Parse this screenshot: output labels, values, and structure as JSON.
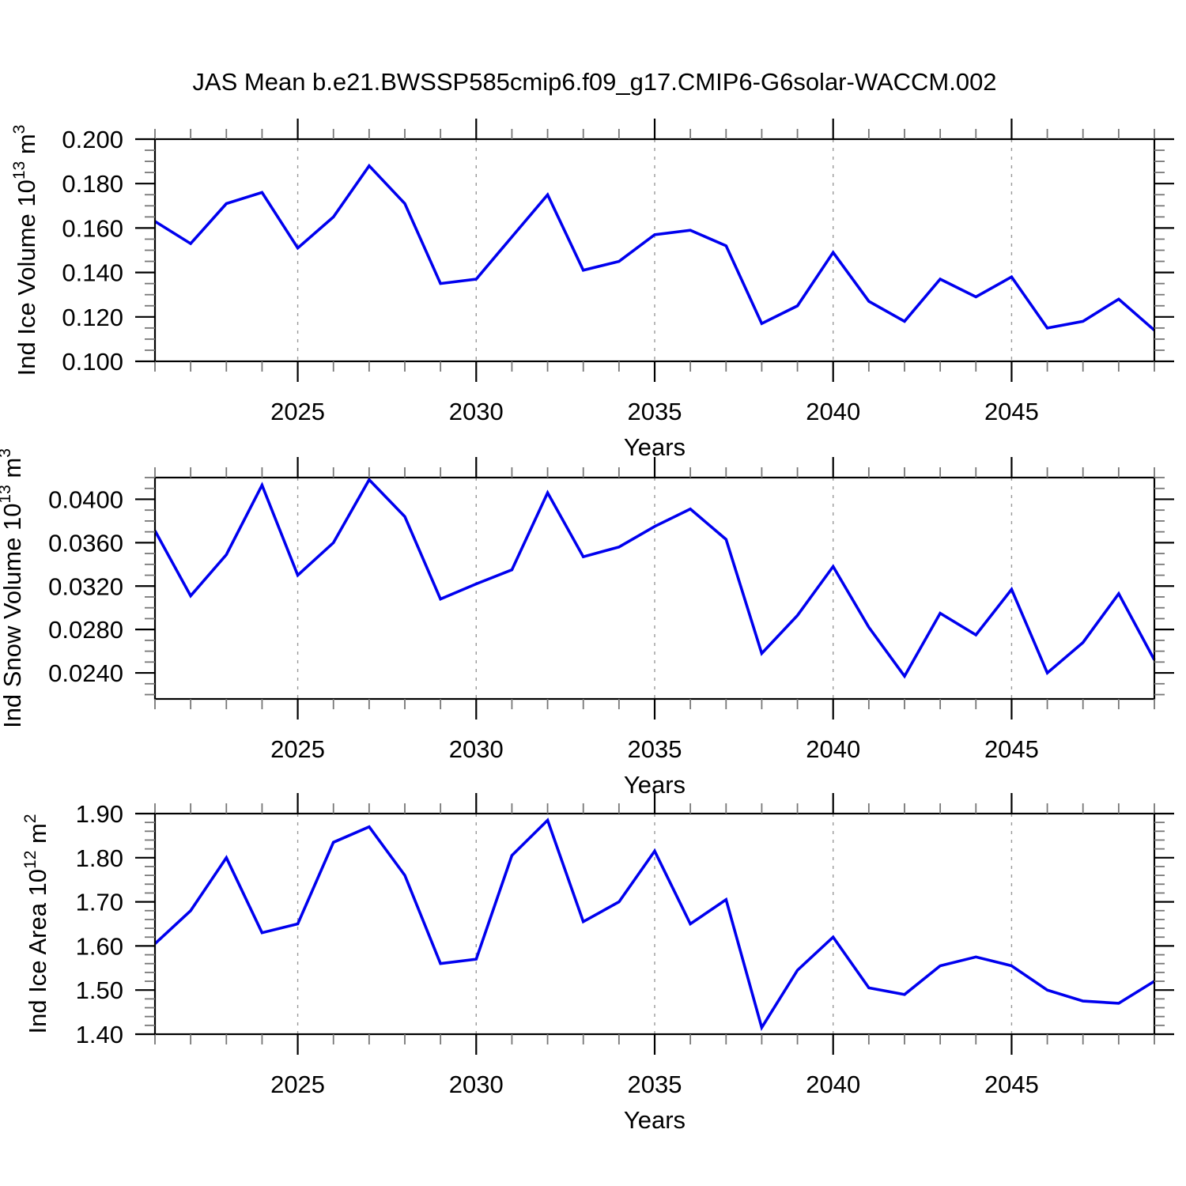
{
  "title": "JAS Mean b.e21.BWSSP585cmip6.f09_g17.CMIP6-G6solar-WACCM.002",
  "chart_data": [
    {
      "type": "line",
      "name": "ice-volume",
      "ylabel_segments": [
        {
          "t": "Ind Ice Volume 10"
        },
        {
          "t": "13",
          "sup": true
        },
        {
          "t": " m"
        },
        {
          "t": "3",
          "sup": true
        }
      ],
      "ylabel_plain": "Ind Ice Volume 10^13 m^3",
      "xlabel": "Years",
      "x": [
        2021,
        2022,
        2023,
        2024,
        2025,
        2026,
        2027,
        2028,
        2029,
        2030,
        2031,
        2032,
        2033,
        2034,
        2035,
        2036,
        2037,
        2038,
        2039,
        2040,
        2041,
        2042,
        2043,
        2044,
        2045,
        2046,
        2047,
        2048,
        2049
      ],
      "values": [
        0.163,
        0.153,
        0.171,
        0.176,
        0.151,
        0.165,
        0.188,
        0.171,
        0.135,
        0.137,
        0.156,
        0.175,
        0.141,
        0.145,
        0.157,
        0.159,
        0.152,
        0.117,
        0.125,
        0.149,
        0.127,
        0.118,
        0.137,
        0.129,
        0.138,
        0.115,
        0.118,
        0.128,
        0.114
      ],
      "ylim": [
        0.1,
        0.2
      ],
      "yticks": [
        {
          "v": 0.1,
          "label": "0.100"
        },
        {
          "v": 0.12,
          "label": "0.120"
        },
        {
          "v": 0.14,
          "label": "0.140"
        },
        {
          "v": 0.16,
          "label": "0.160"
        },
        {
          "v": 0.18,
          "label": "0.180"
        },
        {
          "v": 0.2,
          "label": "0.200"
        }
      ],
      "minor_y_step": 0.005,
      "xticks": [
        2025,
        2030,
        2035,
        2040,
        2045
      ],
      "xlim": [
        2021,
        2049
      ],
      "line_color": "#0000EE",
      "grid": "vertical-dashed"
    },
    {
      "type": "line",
      "name": "snow-volume",
      "ylabel_segments": [
        {
          "t": "Ind Snow Volume 10"
        },
        {
          "t": "13",
          "sup": true
        },
        {
          "t": " m"
        },
        {
          "t": "3",
          "sup": true
        }
      ],
      "ylabel_plain": "Ind Snow Volume 10^13 m^3",
      "xlabel": "Years",
      "x": [
        2021,
        2022,
        2023,
        2024,
        2025,
        2026,
        2027,
        2028,
        2029,
        2030,
        2031,
        2032,
        2033,
        2034,
        2035,
        2036,
        2037,
        2038,
        2039,
        2040,
        2041,
        2042,
        2043,
        2044,
        2045,
        2046,
        2047,
        2048,
        2049
      ],
      "values": [
        0.0371,
        0.0311,
        0.0349,
        0.0413,
        0.033,
        0.036,
        0.0418,
        0.0384,
        0.0308,
        0.0322,
        0.0335,
        0.0406,
        0.0347,
        0.0356,
        0.0375,
        0.0391,
        0.0363,
        0.0258,
        0.0293,
        0.0338,
        0.0282,
        0.0237,
        0.0295,
        0.0275,
        0.0317,
        0.024,
        0.0268,
        0.0313,
        0.0252
      ],
      "ylim": [
        0.0216,
        0.042
      ],
      "yticks": [
        {
          "v": 0.024,
          "label": "0.0240"
        },
        {
          "v": 0.028,
          "label": "0.0280"
        },
        {
          "v": 0.032,
          "label": "0.0320"
        },
        {
          "v": 0.036,
          "label": "0.0360"
        },
        {
          "v": 0.04,
          "label": "0.0400"
        }
      ],
      "minor_y_step": 0.001,
      "xticks": [
        2025,
        2030,
        2035,
        2040,
        2045
      ],
      "xlim": [
        2021,
        2049
      ],
      "line_color": "#0000EE",
      "grid": "vertical-dashed"
    },
    {
      "type": "line",
      "name": "ice-area",
      "ylabel_segments": [
        {
          "t": "Ind Ice Area 10"
        },
        {
          "t": "12",
          "sup": true
        },
        {
          "t": " m"
        },
        {
          "t": "2",
          "sup": true
        }
      ],
      "ylabel_plain": "Ind Ice Area 10^12 m^2",
      "xlabel": "Years",
      "x": [
        2021,
        2022,
        2023,
        2024,
        2025,
        2026,
        2027,
        2028,
        2029,
        2030,
        2031,
        2032,
        2033,
        2034,
        2035,
        2036,
        2037,
        2038,
        2039,
        2040,
        2041,
        2042,
        2043,
        2044,
        2045,
        2046,
        2047,
        2048,
        2049
      ],
      "values": [
        1.605,
        1.68,
        1.8,
        1.63,
        1.65,
        1.835,
        1.87,
        1.76,
        1.56,
        1.57,
        1.805,
        1.885,
        1.655,
        1.7,
        1.815,
        1.65,
        1.705,
        1.415,
        1.545,
        1.62,
        1.505,
        1.49,
        1.555,
        1.575,
        1.555,
        1.5,
        1.475,
        1.47,
        1.52
      ],
      "ylim": [
        1.4,
        1.9
      ],
      "yticks": [
        {
          "v": 1.4,
          "label": "1.40"
        },
        {
          "v": 1.5,
          "label": "1.50"
        },
        {
          "v": 1.6,
          "label": "1.60"
        },
        {
          "v": 1.7,
          "label": "1.70"
        },
        {
          "v": 1.8,
          "label": "1.80"
        },
        {
          "v": 1.9,
          "label": "1.90"
        }
      ],
      "minor_y_step": 0.02,
      "xticks": [
        2025,
        2030,
        2035,
        2040,
        2045
      ],
      "xlim": [
        2021,
        2049
      ],
      "line_color": "#0000EE",
      "grid": "vertical-dashed"
    }
  ],
  "colors": {
    "line": "#0000EE",
    "frame": "#000000",
    "minor_tick": "#777777",
    "grid_dash": "#999999",
    "text": "#000000"
  }
}
